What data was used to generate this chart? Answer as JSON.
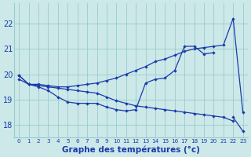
{
  "xlabel": "Graphe des températures (°c)",
  "bg_color": "#cce8e8",
  "line_color": "#1a3aab",
  "grid_color": "#99cccc",
  "hours": [
    0,
    1,
    2,
    3,
    4,
    5,
    6,
    7,
    8,
    9,
    10,
    11,
    12,
    13,
    14,
    15,
    16,
    17,
    18,
    19,
    20,
    21,
    22,
    23
  ],
  "series1": [
    19.95,
    19.6,
    19.6,
    19.55,
    19.5,
    19.5,
    19.55,
    19.6,
    19.65,
    19.75,
    19.85,
    20.0,
    20.15,
    20.3,
    20.5,
    20.6,
    20.75,
    20.9,
    21.0,
    21.05,
    21.1,
    21.15,
    22.2,
    18.5
  ],
  "series2": [
    19.8,
    19.6,
    19.5,
    19.35,
    19.1,
    18.9,
    18.85,
    18.85,
    18.85,
    18.7,
    18.6,
    18.55,
    18.6,
    19.65,
    19.8,
    19.85,
    20.15,
    21.1,
    21.1,
    20.8,
    20.85,
    null,
    18.3,
    17.75
  ],
  "series3": [
    19.95,
    19.6,
    19.55,
    19.5,
    19.45,
    19.4,
    19.35,
    19.3,
    19.25,
    19.1,
    18.95,
    18.85,
    18.75,
    18.7,
    18.65,
    18.6,
    18.55,
    18.5,
    18.45,
    18.4,
    18.35,
    18.3,
    18.15,
    null
  ],
  "ylim": [
    17.5,
    22.8
  ],
  "yticks": [
    18,
    19,
    20,
    21,
    22
  ],
  "xticks": [
    0,
    1,
    2,
    3,
    4,
    5,
    6,
    7,
    8,
    9,
    10,
    11,
    12,
    13,
    14,
    15,
    16,
    17,
    18,
    19,
    20,
    21,
    22,
    23
  ]
}
